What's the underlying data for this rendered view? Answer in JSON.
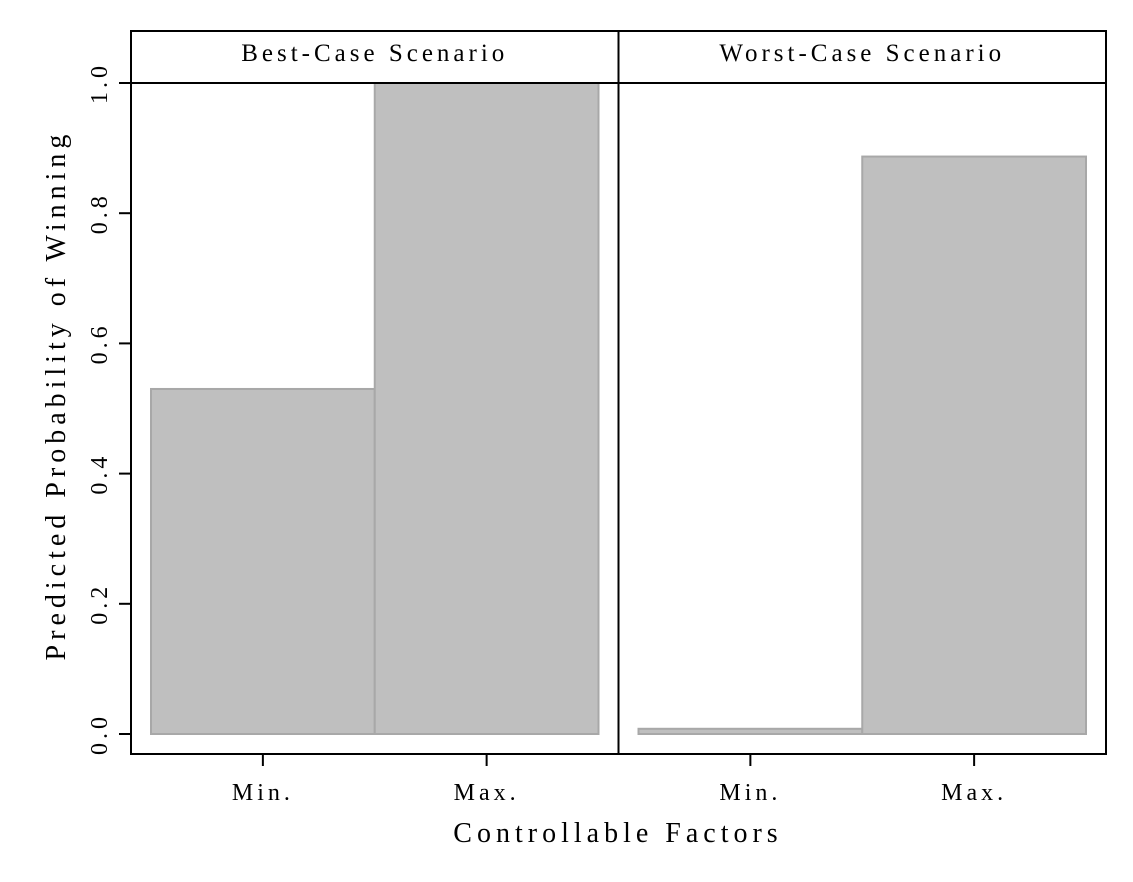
{
  "chart_data": {
    "type": "bar",
    "xlabel": "Controllable Factors",
    "ylabel": "Predicted Probability of Winning",
    "ylim": [
      0,
      1
    ],
    "yticks": [
      "0.0",
      "0.2",
      "0.4",
      "0.6",
      "0.8",
      "1.0"
    ],
    "ytick_values": [
      0,
      0.2,
      0.4,
      0.6,
      0.8,
      1.0
    ],
    "grid": false,
    "bar_color": "#bfbfbf",
    "bar_edge_color": "#a8a8a8",
    "panels": [
      {
        "name": "Best-Case Scenario",
        "categories": [
          "Min.",
          "Max."
        ],
        "values": [
          0.53,
          1.0
        ]
      },
      {
        "name": "Worst-Case Scenario",
        "categories": [
          "Min.",
          "Max."
        ],
        "values": [
          0.008,
          0.887
        ]
      }
    ]
  }
}
